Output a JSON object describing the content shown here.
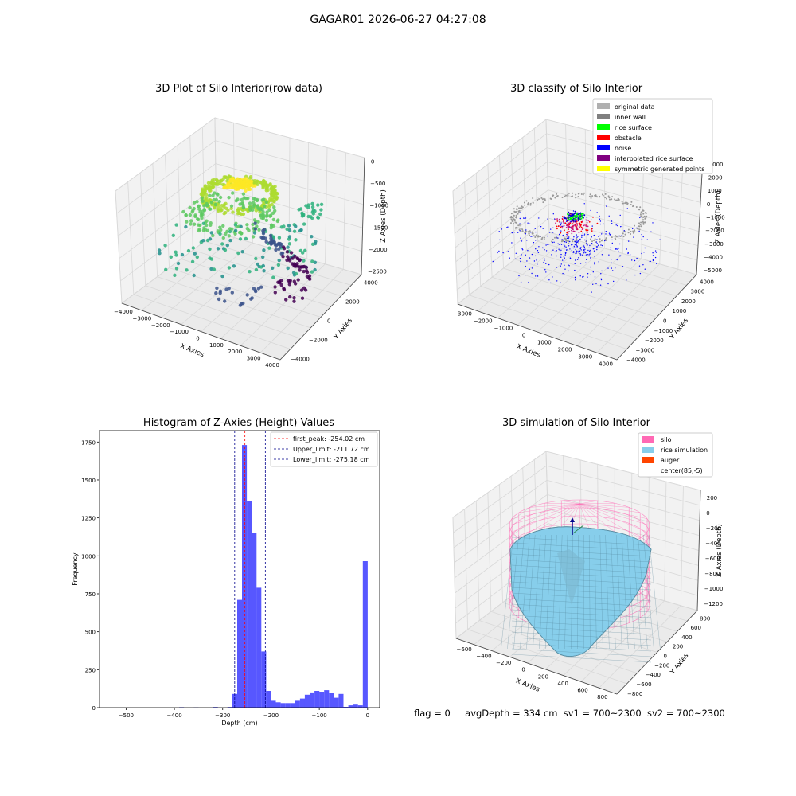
{
  "suptitle": "GAGAR01 2026-06-27 04:27:08",
  "footer": {
    "flag": "flag = 0",
    "avg": "avgDepth = 334 cm",
    "sv1": "sv1 = 700~2300",
    "sv2": "sv2 = 700~2300"
  },
  "chart_data": [
    {
      "type": "scatter",
      "title": "3D Plot of Silo Interior(row data)",
      "xlabel": "X Axies",
      "ylabel": "Y Axies",
      "zlabel": "Z Axies (Depth)",
      "x_ticks": [
        "−4000",
        "−3000",
        "−2000",
        "−1000",
        "0",
        "1000",
        "2000",
        "3000",
        "4000"
      ],
      "y_ticks": [
        "4000",
        "2000",
        "0",
        "−2000",
        "−4000"
      ],
      "z_ticks": [
        "0",
        "−500",
        "−1000",
        "−1500",
        "−2000",
        "−2500"
      ],
      "colormap": "viridis"
    },
    {
      "type": "scatter",
      "title": "3D classify of Silo Interior",
      "xlabel": "X Axies",
      "ylabel": "Y Axies",
      "zlabel": "Z Axies (Depth)",
      "x_ticks": [
        "−3000",
        "−2000",
        "−1000",
        "0",
        "1000",
        "2000",
        "3000",
        "4000"
      ],
      "y_ticks": [
        "4000",
        "3000",
        "2000",
        "1000",
        "0",
        "−1000",
        "−2000",
        "−3000",
        "−4000"
      ],
      "z_ticks": [
        "3000",
        "2000",
        "1000",
        "0",
        "−1000",
        "−2000",
        "−3000",
        "−4000",
        "−5000"
      ],
      "legend": [
        {
          "label": "original data",
          "color": "#b0b0b0"
        },
        {
          "label": "inner wall",
          "color": "#808080"
        },
        {
          "label": "rice surface",
          "color": "#00ff00"
        },
        {
          "label": "obstacle",
          "color": "#ff0000"
        },
        {
          "label": "noise",
          "color": "#0000ff"
        },
        {
          "label": "interpolated rice surface",
          "color": "#800080"
        },
        {
          "label": "symmetric generated points",
          "color": "#ffff00"
        }
      ]
    },
    {
      "type": "bar",
      "title": "Histogram of Z-Axies (Height) Values",
      "xlabel": "Depth (cm)",
      "ylabel": "Frequency",
      "xlim": [
        -555,
        25
      ],
      "ylim": [
        0,
        1825
      ],
      "x_ticks": [
        -500,
        -400,
        -300,
        -200,
        -100,
        0
      ],
      "x_tick_labels": [
        "−500",
        "−400",
        "−300",
        "−200",
        "−100",
        "0"
      ],
      "y_ticks": [
        0,
        250,
        500,
        750,
        1000,
        1250,
        1500,
        1750
      ],
      "bin_width": 10,
      "bins": [
        {
          "x": -390,
          "v": 3
        },
        {
          "x": -360,
          "v": 2
        },
        {
          "x": -320,
          "v": 4
        },
        {
          "x": -290,
          "v": 4
        },
        {
          "x": -280,
          "v": 90
        },
        {
          "x": -270,
          "v": 710
        },
        {
          "x": -260,
          "v": 1730
        },
        {
          "x": -250,
          "v": 1360
        },
        {
          "x": -240,
          "v": 1150
        },
        {
          "x": -230,
          "v": 790
        },
        {
          "x": -220,
          "v": 370
        },
        {
          "x": -210,
          "v": 110
        },
        {
          "x": -200,
          "v": 45
        },
        {
          "x": -190,
          "v": 35
        },
        {
          "x": -180,
          "v": 30
        },
        {
          "x": -170,
          "v": 30
        },
        {
          "x": -160,
          "v": 30
        },
        {
          "x": -150,
          "v": 45
        },
        {
          "x": -140,
          "v": 60
        },
        {
          "x": -130,
          "v": 85
        },
        {
          "x": -120,
          "v": 100
        },
        {
          "x": -110,
          "v": 110
        },
        {
          "x": -100,
          "v": 105
        },
        {
          "x": -90,
          "v": 115
        },
        {
          "x": -80,
          "v": 95
        },
        {
          "x": -70,
          "v": 65
        },
        {
          "x": -60,
          "v": 90
        },
        {
          "x": -50,
          "v": 5
        },
        {
          "x": -40,
          "v": 15
        },
        {
          "x": -30,
          "v": 20
        },
        {
          "x": -20,
          "v": 15
        },
        {
          "x": -10,
          "v": 965
        }
      ],
      "lines": [
        {
          "label": "first_peak: -254.02 cm",
          "value": -254.02,
          "color": "#ff0000"
        },
        {
          "label": "Upper_limit: -211.72 cm",
          "value": -211.72,
          "color": "#00008b"
        },
        {
          "label": "Lower_limit: -275.18 cm",
          "value": -275.18,
          "color": "#00008b"
        }
      ],
      "bar_color": "#4e4eff"
    },
    {
      "type": "other",
      "title": "3D simulation of Silo Interior",
      "xlabel": "X Axies",
      "ylabel": "Y Axies",
      "zlabel": "Z Axies (Depth)",
      "x_ticks": [
        "−600",
        "−400",
        "−200",
        "0",
        "200",
        "400",
        "600",
        "800"
      ],
      "y_ticks": [
        "800",
        "600",
        "400",
        "200",
        "0",
        "−200",
        "−400",
        "−600",
        "−800"
      ],
      "z_ticks": [
        "200",
        "0",
        "−200",
        "−400",
        "−600",
        "−800",
        "−1000",
        "−1200"
      ],
      "legend": [
        {
          "label": "silo",
          "color": "#ff69b4"
        },
        {
          "label": "rice simulation",
          "color": "#87ceeb"
        },
        {
          "label": "auger",
          "color": "#ff4500"
        },
        {
          "label": "center(85,-5)",
          "color": ""
        }
      ]
    }
  ]
}
